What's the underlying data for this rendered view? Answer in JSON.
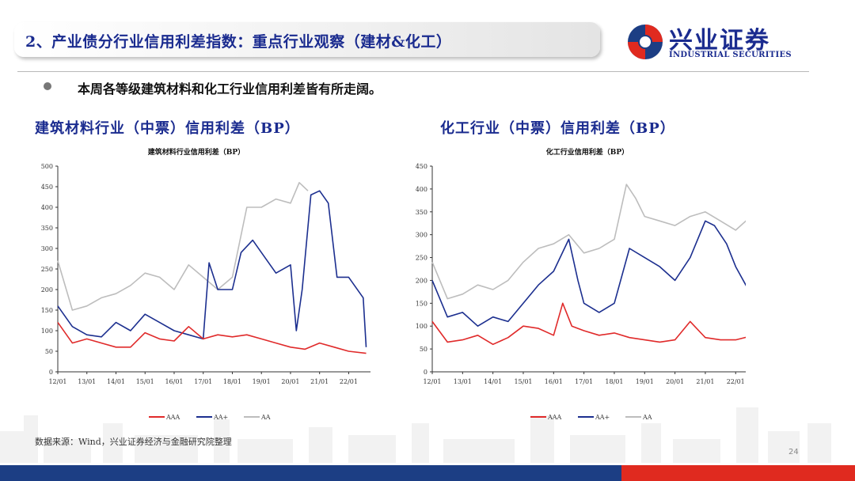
{
  "header": {
    "title": "2、产业债分行业信用利差指数：重点行业观察（建材&化工）",
    "logo_cn": "兴业证券",
    "logo_en": "INDUSTRIAL SECURITIES",
    "logo_icon": "swirl-logo-icon"
  },
  "bullet": "本周各等级建筑材料和化工行业信用利差皆有所走阔。",
  "left_section_title": "建筑材料行业（中票）信用利差（BP）",
  "right_section_title": "化工行业（中票）信用利差（BP）",
  "colors": {
    "AAA": "#e02a2a",
    "AA+": "#1c2f8f",
    "AA": "#bdbdbd",
    "title": "#1a2b8f"
  },
  "chart_data": [
    {
      "type": "line",
      "title": "建筑材料行业信用利差（BP）",
      "x_ticks": [
        "12/01",
        "13/01",
        "14/01",
        "15/01",
        "16/01",
        "17/01",
        "18/01",
        "19/01",
        "20/01",
        "21/01",
        "22/01"
      ],
      "ylim": [
        0,
        500
      ],
      "y_ticks": [
        "0",
        "50",
        "100",
        "150",
        "200",
        "250",
        "300",
        "350",
        "400",
        "450",
        "500"
      ],
      "legend": [
        "AAA",
        "AA+",
        "AA"
      ],
      "legend_position": "bottom",
      "series": [
        {
          "name": "AAA",
          "x": [
            2012.0,
            2012.5,
            2013.0,
            2013.5,
            2014.0,
            2014.5,
            2015.0,
            2015.5,
            2016.0,
            2016.5,
            2017.0,
            2017.5,
            2018.0,
            2018.5,
            2019.0,
            2019.5,
            2020.0,
            2020.5,
            2021.0,
            2021.5,
            2022.0,
            2022.6
          ],
          "values": [
            120,
            70,
            80,
            70,
            60,
            60,
            95,
            80,
            75,
            110,
            80,
            90,
            85,
            90,
            80,
            70,
            60,
            55,
            70,
            60,
            50,
            45
          ]
        },
        {
          "name": "AA+",
          "x": [
            2012.0,
            2012.5,
            2013.0,
            2013.5,
            2014.0,
            2014.5,
            2015.0,
            2015.5,
            2016.0,
            2016.5,
            2017.0,
            2017.2,
            2017.5,
            2018.0,
            2018.3,
            2018.7,
            2019.0,
            2019.5,
            2020.0,
            2020.2,
            2020.4,
            2020.7,
            2021.0,
            2021.3,
            2021.6,
            2022.0,
            2022.5,
            2022.6
          ],
          "values": [
            160,
            110,
            90,
            85,
            120,
            100,
            140,
            120,
            100,
            90,
            80,
            265,
            200,
            200,
            290,
            320,
            290,
            240,
            260,
            100,
            200,
            430,
            440,
            410,
            230,
            230,
            180,
            60
          ]
        },
        {
          "name": "AA",
          "x": [
            2012.0,
            2012.5,
            2013.0,
            2013.5,
            2014.0,
            2014.5,
            2015.0,
            2015.5,
            2016.0,
            2016.5,
            2017.0,
            2017.5,
            2018.0,
            2018.5,
            2019.0,
            2019.5,
            2020.0,
            2020.3,
            2020.6
          ],
          "values": [
            270,
            150,
            160,
            180,
            190,
            210,
            240,
            230,
            200,
            260,
            230,
            200,
            230,
            400,
            400,
            420,
            410,
            460,
            440
          ]
        }
      ]
    },
    {
      "type": "line",
      "title": "化工行业信用利差（BP）",
      "x_ticks": [
        "12/01",
        "13/01",
        "14/01",
        "15/01",
        "16/01",
        "17/01",
        "18/01",
        "19/01",
        "20/01",
        "21/01",
        "22/01"
      ],
      "ylim": [
        0,
        450
      ],
      "y_ticks": [
        "0",
        "50",
        "100",
        "150",
        "200",
        "250",
        "300",
        "350",
        "400",
        "450"
      ],
      "legend": [
        "AAA",
        "AA+",
        "AA"
      ],
      "legend_position": "bottom",
      "series": [
        {
          "name": "AAA",
          "x": [
            2012.0,
            2012.5,
            2013.0,
            2013.5,
            2014.0,
            2014.5,
            2015.0,
            2015.5,
            2016.0,
            2016.3,
            2016.6,
            2017.0,
            2017.5,
            2018.0,
            2018.5,
            2019.0,
            2019.5,
            2020.0,
            2020.5,
            2021.0,
            2021.5,
            2022.0,
            2022.6
          ],
          "values": [
            110,
            65,
            70,
            80,
            60,
            75,
            100,
            95,
            80,
            150,
            100,
            90,
            80,
            85,
            75,
            70,
            65,
            70,
            110,
            75,
            70,
            70,
            80
          ]
        },
        {
          "name": "AA+",
          "x": [
            2012.0,
            2012.5,
            2013.0,
            2013.5,
            2014.0,
            2014.5,
            2015.0,
            2015.5,
            2016.0,
            2016.5,
            2016.8,
            2017.0,
            2017.5,
            2018.0,
            2018.5,
            2019.0,
            2019.5,
            2020.0,
            2020.5,
            2021.0,
            2021.3,
            2021.7,
            2022.0,
            2022.5,
            2022.6
          ],
          "values": [
            200,
            120,
            130,
            100,
            120,
            110,
            150,
            190,
            220,
            290,
            200,
            150,
            130,
            150,
            270,
            250,
            230,
            200,
            250,
            330,
            320,
            280,
            230,
            170,
            180
          ]
        },
        {
          "name": "AA",
          "x": [
            2012.0,
            2012.5,
            2013.0,
            2013.5,
            2014.0,
            2014.5,
            2015.0,
            2015.5,
            2016.0,
            2016.5,
            2017.0,
            2017.5,
            2018.0,
            2018.4,
            2018.7,
            2019.0,
            2019.5,
            2020.0,
            2020.5,
            2021.0,
            2021.5,
            2022.0,
            2022.5
          ],
          "values": [
            240,
            160,
            170,
            190,
            180,
            200,
            240,
            270,
            280,
            300,
            260,
            270,
            290,
            410,
            380,
            340,
            330,
            320,
            340,
            350,
            330,
            310,
            340
          ]
        }
      ]
    }
  ],
  "source": "数据来源：Wind，兴业证券经济与金融研究院整理",
  "page_number": "24"
}
